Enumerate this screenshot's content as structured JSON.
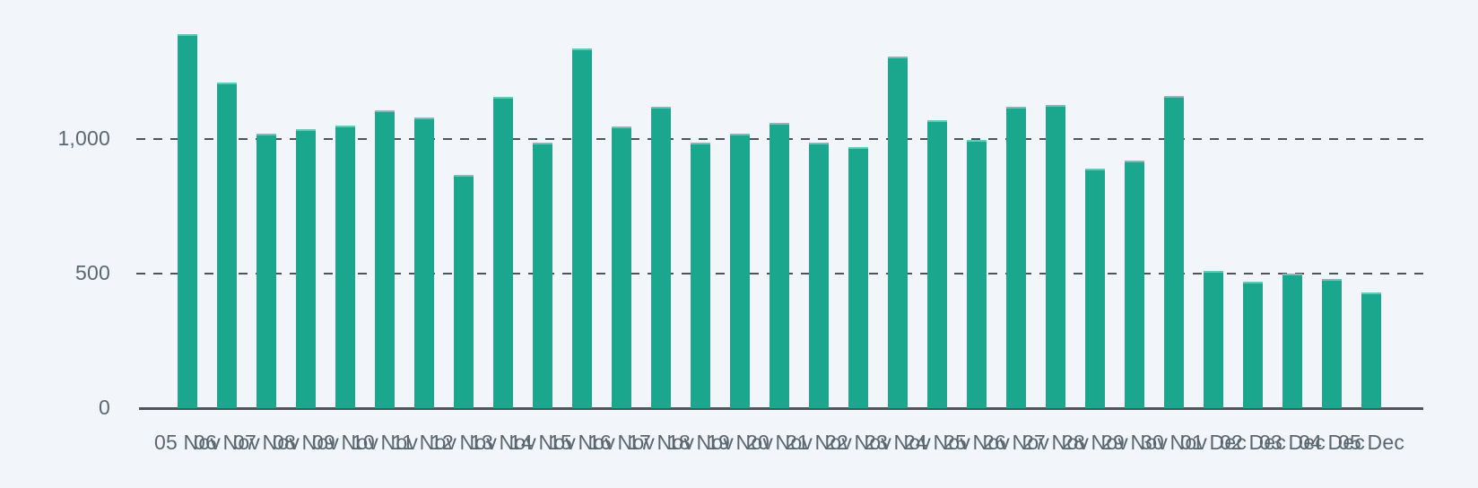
{
  "colors": {
    "background": "#f2f5f9",
    "bar": "#1aa78e",
    "axis_line": "#4f555c",
    "gridline": "#4d545b",
    "tick_label": "#5b6770"
  },
  "chart_data": {
    "type": "bar",
    "title": "",
    "xlabel": "",
    "ylabel": "",
    "legend": "none",
    "grid": "horizontal dashed gridlines at 500 and 1000",
    "ylim": [
      0,
      1500
    ],
    "yticks": [
      0,
      500,
      1000
    ],
    "ytick_labels": [
      "0",
      "500",
      "1,000"
    ],
    "categories": [
      "05 Nov",
      "06 Nov",
      "07 Nov",
      "08 Nov",
      "09 Nov",
      "10 Nov",
      "11 Nov",
      "12 Nov",
      "13 Nov",
      "14 Nov",
      "15 Nov",
      "16 Nov",
      "17 Nov",
      "18 Nov",
      "19 Nov",
      "20 Nov",
      "21 Nov",
      "22 Nov",
      "23 Nov",
      "24 Nov",
      "25 Nov",
      "26 Nov",
      "27 Nov",
      "28 Nov",
      "29 Nov",
      "30 Nov",
      "01 Dec",
      "02 Dec",
      "03 Dec",
      "04 Dec",
      "05 Dec"
    ],
    "values": [
      1390,
      1210,
      1020,
      1035,
      1050,
      1105,
      1080,
      865,
      1155,
      985,
      1335,
      1045,
      1120,
      985,
      1020,
      1060,
      985,
      970,
      1305,
      1070,
      995,
      1120,
      1125,
      890,
      920,
      1160,
      510,
      470,
      500,
      480,
      430
    ]
  },
  "layout_hints": {
    "note": "single-series bar chart, no title, no legend, x labels overlap"
  }
}
